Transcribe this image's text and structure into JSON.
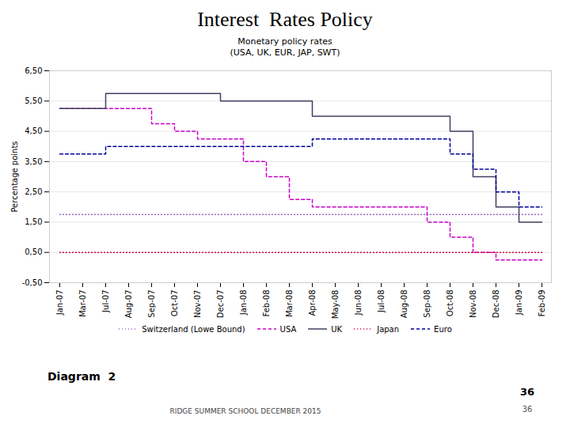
{
  "chart_data": {
    "type": "step",
    "title": "Interest  Rates Policy",
    "subtitle": "Monetary policy rates\n(USA, UK, EUR, JAP, SWT)",
    "ylabel": "Percentage points",
    "annotations": [
      "Diagram  2",
      "RIDGE SUMMER SCHOOL DECEMBER 2015",
      "36",
      "36"
    ],
    "categories": [
      "Jan-07",
      "Mar-07",
      "Jul-07",
      "Aug-07",
      "Sep-07",
      "Oct-07",
      "Nov-07",
      "Dec-07",
      "Jan-08",
      "Feb-08",
      "Mar-08",
      "Apr-08",
      "May-08",
      "Jun-08",
      "Jul-08",
      "Aug-08",
      "Sep-08",
      "Oct-08",
      "Nov-08",
      "Dec-08",
      "Jan-09",
      "Feb-09"
    ],
    "series": [
      {
        "name": "Switzerland (Lowe Bound)",
        "color": "#9966cc",
        "line_style": "dotted",
        "values": [
          1.75,
          1.75,
          1.75,
          1.75,
          1.75,
          1.75,
          1.75,
          1.75,
          1.75,
          1.75,
          1.75,
          1.75,
          1.75,
          1.75,
          1.75,
          1.75,
          1.75,
          1.75,
          1.75,
          1.75,
          1.75,
          1.75
        ]
      },
      {
        "name": "USA",
        "color": "#cc00cc",
        "line_style": "dashed",
        "values": [
          5.25,
          5.25,
          5.25,
          5.25,
          4.75,
          4.5,
          4.25,
          4.25,
          3.5,
          3.0,
          2.25,
          2.0,
          2.0,
          2.0,
          2.0,
          2.0,
          1.5,
          1.0,
          0.5,
          0.25,
          0.25,
          0.25
        ]
      },
      {
        "name": "UK",
        "color": "#404060",
        "line_style": "solid",
        "values": [
          5.25,
          5.25,
          5.75,
          5.75,
          5.75,
          5.75,
          5.75,
          5.5,
          5.5,
          5.5,
          5.5,
          5.0,
          5.0,
          5.0,
          5.0,
          5.0,
          5.0,
          4.5,
          3.0,
          2.0,
          1.5,
          1.5
        ]
      },
      {
        "name": "Japan",
        "color": "#cc0033",
        "line_style": "dotted",
        "values": [
          0.5,
          0.5,
          0.5,
          0.5,
          0.5,
          0.5,
          0.5,
          0.5,
          0.5,
          0.5,
          0.5,
          0.5,
          0.5,
          0.5,
          0.5,
          0.5,
          0.5,
          0.5,
          0.5,
          0.5,
          0.5,
          0.5
        ]
      },
      {
        "name": "Euro",
        "color": "#000099",
        "line_style": "dashed",
        "values": [
          3.75,
          3.75,
          4.0,
          4.0,
          4.0,
          4.0,
          4.0,
          4.0,
          4.0,
          4.0,
          4.0,
          4.25,
          4.25,
          4.25,
          4.25,
          4.25,
          4.25,
          3.75,
          3.25,
          2.5,
          2.0,
          2.0
        ]
      }
    ],
    "ylim": [
      -0.5,
      6.5
    ],
    "yticks": [
      {
        "value": -0.5,
        "label": "-0,50"
      },
      {
        "value": 0.5,
        "label": "0,50"
      },
      {
        "value": 1.5,
        "label": "1,50"
      },
      {
        "value": 2.5,
        "label": "2,50"
      },
      {
        "value": 3.5,
        "label": "3,50"
      },
      {
        "value": 4.5,
        "label": "4,50"
      },
      {
        "value": 5.5,
        "label": "5,50"
      },
      {
        "value": 6.5,
        "label": "6,50"
      }
    ],
    "grid": true,
    "legend": "bottom"
  }
}
